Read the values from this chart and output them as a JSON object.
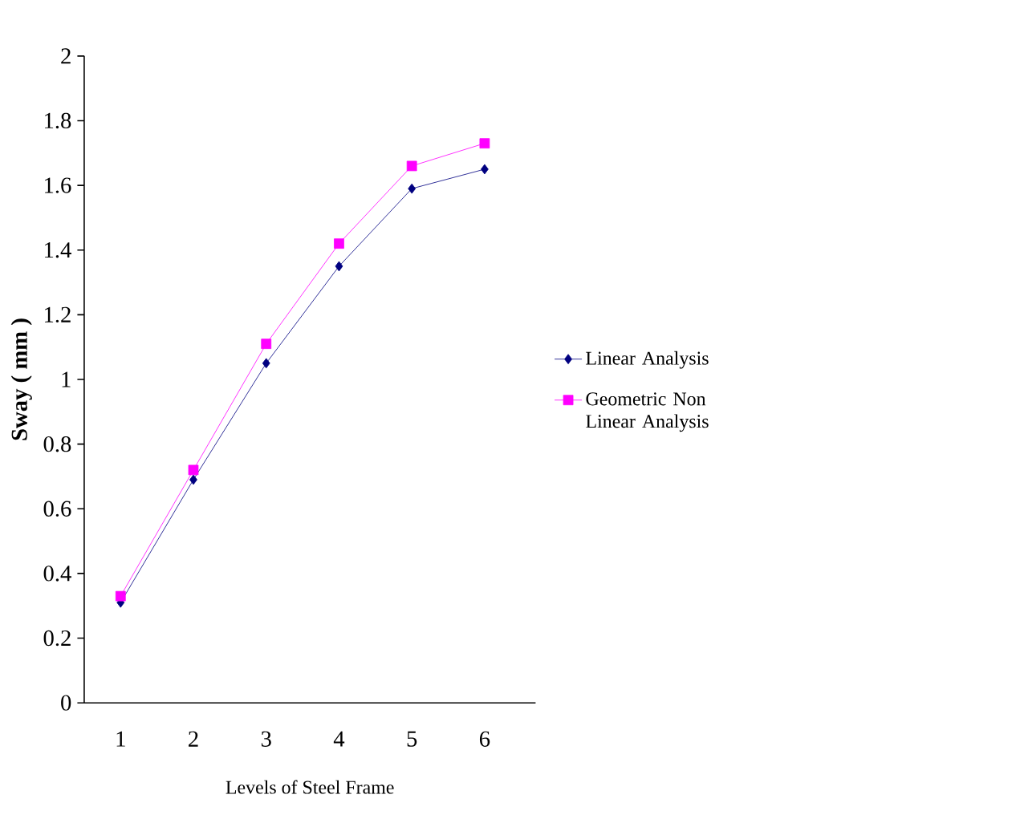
{
  "chart_data": {
    "type": "line",
    "xlabel": "Levels of Steel Frame",
    "ylabel": "Sway ( mm )",
    "categories": [
      "1",
      "2",
      "3",
      "4",
      "5",
      "6"
    ],
    "series": [
      {
        "name": "Linear Analysis",
        "color": "#000080",
        "marker": "diamond",
        "values": [
          0.31,
          0.69,
          1.05,
          1.35,
          1.59,
          1.65
        ]
      },
      {
        "name": "Geometric Non Linear Analysis",
        "color": "#ff00ff",
        "marker": "square",
        "values": [
          0.33,
          0.72,
          1.11,
          1.42,
          1.66,
          1.73
        ]
      }
    ],
    "ylim": [
      0,
      2
    ],
    "yticks": [
      0,
      0.2,
      0.4,
      0.6,
      0.8,
      1,
      1.2,
      1.4,
      1.6,
      1.8,
      2
    ],
    "grid": false,
    "legend": "right"
  }
}
